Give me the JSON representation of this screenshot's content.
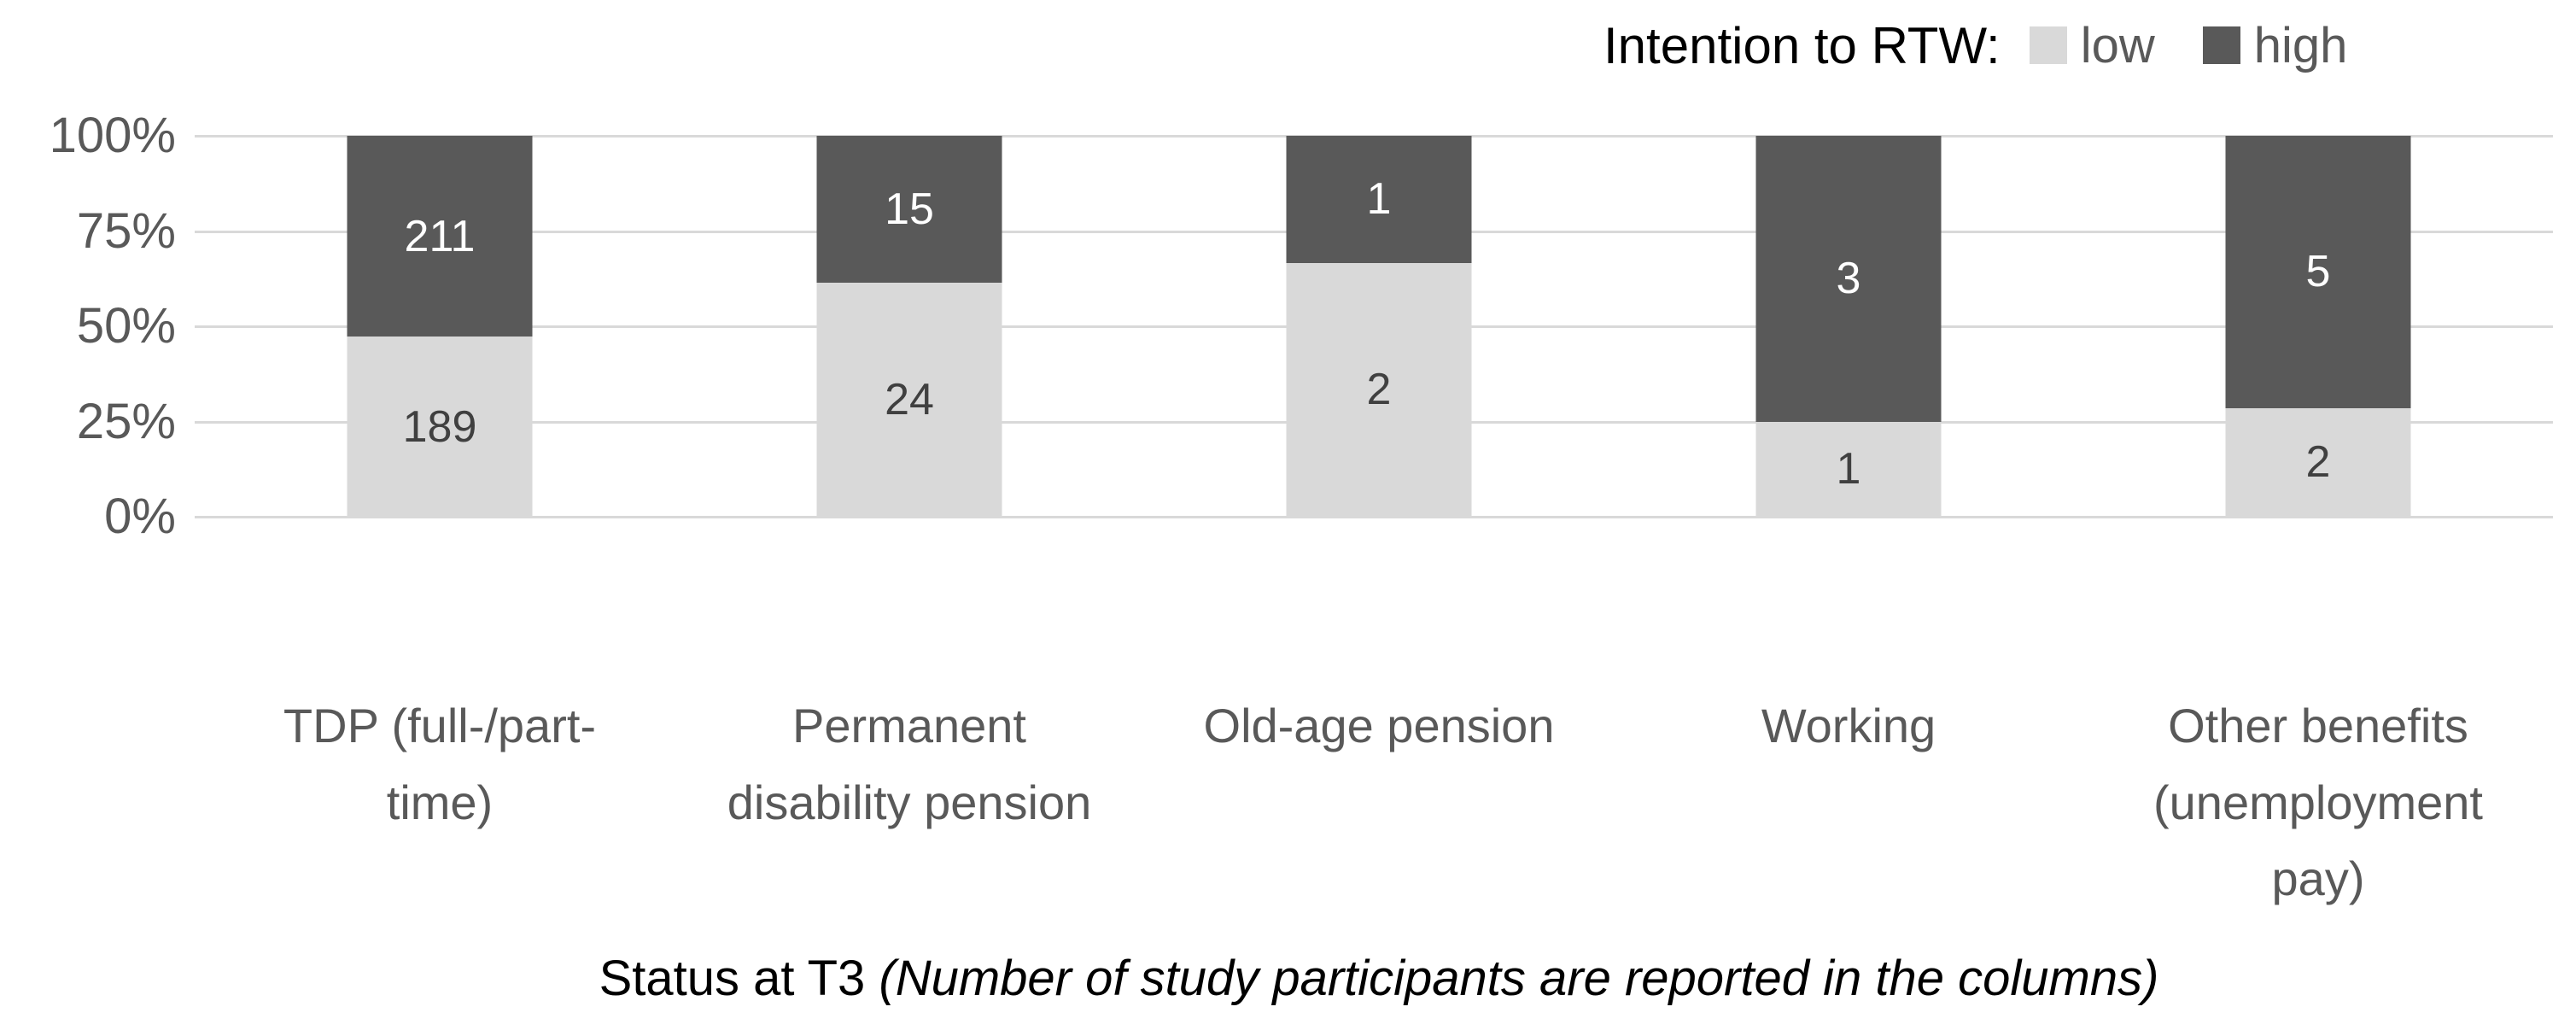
{
  "legend": {
    "title": "Intention to RTW:",
    "items": [
      {
        "label": "low",
        "color": "#d9d9d9"
      },
      {
        "label": "high",
        "color": "#595959"
      }
    ]
  },
  "chart_data": {
    "type": "bar",
    "stacked": true,
    "percent_stacked": true,
    "title": "",
    "categories": [
      "TDP (full-/part-\ntime)",
      "Permanent\ndisability pension",
      "Old-age pension",
      "Working",
      "Other benefits\n(unemployment\npay)"
    ],
    "series": [
      {
        "name": "low",
        "color": "#d9d9d9",
        "label_color": "#404040",
        "values": [
          189,
          24,
          2,
          1,
          2
        ]
      },
      {
        "name": "high",
        "color": "#595959",
        "label_color": "#ffffff",
        "values": [
          211,
          15,
          1,
          3,
          5
        ]
      }
    ],
    "yticks": [
      "0%",
      "25%",
      "50%",
      "75%",
      "100%"
    ],
    "ylim": [
      0,
      100
    ],
    "grid": true,
    "gridline_color": "#d9d9d9",
    "axis_text_color": "#595959",
    "legend_position": "top-right",
    "xlabel": "Status at T3 (Number of study participants are reported in the columns)"
  },
  "caption": {
    "prefix": "Status at T3 ",
    "italic": "(Number of study participants are reported in the columns)"
  }
}
